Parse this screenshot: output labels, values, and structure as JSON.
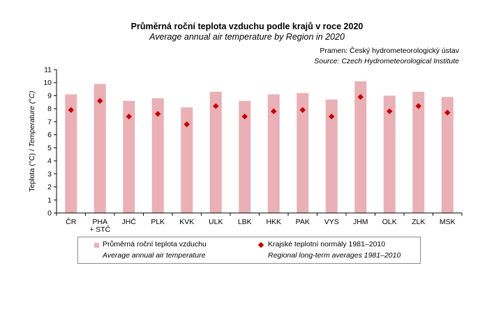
{
  "header": {
    "title_cz": "Průměrná roční teplota vzduchu podle krajů v roce 2020",
    "title_en": "Average annual air temperature by Region in 2020",
    "source_cz": "Pramen: Český hydrometeorologický ústav",
    "source_en": "Source: Czech Hydrometeorological Institute"
  },
  "legend": {
    "bar_cz": "Průměrná roční teplota vzduchu",
    "bar_en": "Average annual air temperature",
    "marker_cz": "Krajské teplotní normály 1981–2010",
    "marker_en": "Regional long-term averages 1981–2010"
  },
  "chart_data": {
    "type": "bar",
    "title": "Průměrná roční teplota vzduchu podle krajů v roce 2020",
    "subtitle": "Average annual air temperature by Region in 2020",
    "ylabel_cz": "Teplota (°C) /",
    "ylabel_en": "Temperature (°C)",
    "xlabel": "",
    "ylim": [
      0,
      11
    ],
    "yticks": [
      0,
      1,
      2,
      3,
      4,
      5,
      6,
      7,
      8,
      9,
      10,
      11
    ],
    "grid": false,
    "legend_position": "bottom",
    "categories": [
      [
        "ČR"
      ],
      [
        "PHA",
        "+ STČ"
      ],
      [
        "JHČ"
      ],
      [
        "PLK"
      ],
      [
        "KVK"
      ],
      [
        "ULK"
      ],
      [
        "LBK"
      ],
      [
        "HKK"
      ],
      [
        "PAK"
      ],
      [
        "VYS"
      ],
      [
        "JHM"
      ],
      [
        "OLK"
      ],
      [
        "ZLK"
      ],
      [
        "MSK"
      ]
    ],
    "series": [
      {
        "name": "Průměrná roční teplota vzduchu",
        "kind": "bar",
        "color": "#e9b0b5",
        "values": [
          9.1,
          9.9,
          8.6,
          8.8,
          8.1,
          9.3,
          8.6,
          9.1,
          9.2,
          8.7,
          10.1,
          9.0,
          9.3,
          8.9
        ]
      },
      {
        "name": "Krajské teplotní normály 1981–2010",
        "kind": "marker",
        "color": "#c00000",
        "values": [
          7.9,
          8.6,
          7.4,
          7.6,
          6.8,
          8.2,
          7.4,
          7.8,
          7.9,
          7.4,
          8.9,
          7.8,
          8.2,
          7.7
        ]
      }
    ]
  }
}
